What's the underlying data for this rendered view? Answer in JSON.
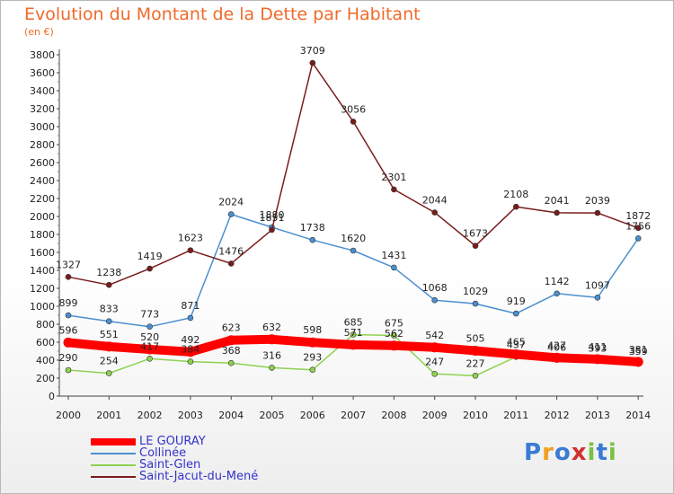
{
  "title": "Evolution du Montant de la Dette par Habitant",
  "subtitle": "(en €)",
  "logo": "Proxiti",
  "chart_data": {
    "type": "line",
    "x": [
      2000,
      2001,
      2002,
      2003,
      2004,
      2005,
      2006,
      2007,
      2008,
      2009,
      2010,
      2011,
      2012,
      2013,
      2014
    ],
    "ylim": [
      0,
      3800
    ],
    "yticks": [
      0,
      200,
      400,
      600,
      800,
      1000,
      1200,
      1400,
      1600,
      1800,
      2000,
      2200,
      2400,
      2600,
      2800,
      3000,
      3200,
      3400,
      3600,
      3800
    ],
    "grid": false,
    "legend_position": "bottom-left",
    "series": [
      {
        "name": "LE GOURAY",
        "color": "#ff0000",
        "values": [
          596,
          551,
          520,
          492,
          623,
          632,
          598,
          571,
          562,
          542,
          505,
          465,
          427,
          411,
          381
        ]
      },
      {
        "name": "Collinée",
        "color": "#4b8fd0",
        "values": [
          899,
          833,
          773,
          871,
          2024,
          1880,
          1738,
          1620,
          1431,
          1068,
          1029,
          919,
          1142,
          1097,
          1756
        ]
      },
      {
        "name": "Saint-Glen",
        "color": "#8fd14f",
        "values": [
          290,
          254,
          417,
          384,
          368,
          316,
          293,
          685,
          675,
          247,
          227,
          437,
          406,
          393,
          359
        ]
      },
      {
        "name": "Saint-Jacut-du-Mené",
        "color": "#7a1c1c",
        "values": [
          1327,
          1238,
          1419,
          1623,
          1476,
          1851,
          3709,
          3056,
          2301,
          2044,
          1673,
          2108,
          2041,
          2039,
          1872
        ]
      }
    ]
  }
}
